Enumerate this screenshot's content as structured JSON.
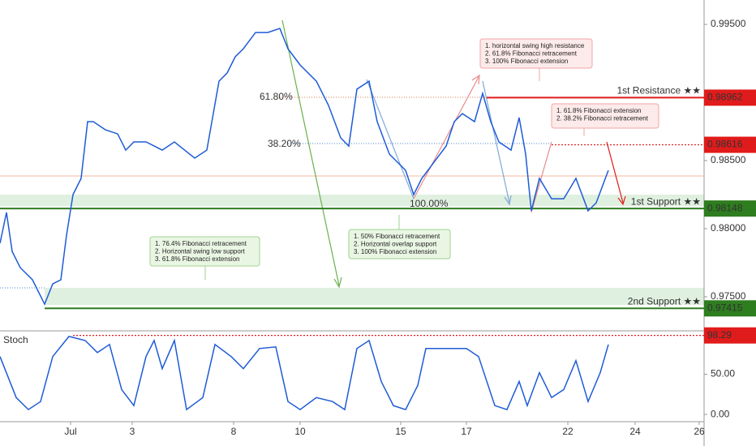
{
  "chart_data": [
    {
      "type": "line",
      "x": [
        0,
        1.6,
        3,
        5,
        8,
        11,
        13,
        15,
        16.4,
        18,
        20,
        21.6,
        23,
        26,
        29,
        31,
        33,
        36,
        40,
        43,
        48,
        51,
        54,
        56,
        58,
        60,
        63,
        66,
        69,
        71,
        74,
        78,
        81,
        84,
        86,
        88,
        91,
        93,
        96,
        100,
        102,
        104,
        107,
        110,
        112,
        114,
        117,
        119,
        121,
        123,
        126,
        128,
        129.6,
        131,
        133,
        136,
        139,
        142,
        145,
        147,
        150
      ],
      "series": [
        {
          "color": "#1e5bd6",
          "values": [
            0.97893,
            0.98119,
            0.97833,
            0.97714,
            0.97625,
            0.97446,
            0.97595,
            0.97625,
            0.97952,
            0.9825,
            0.98369,
            0.98786,
            0.98786,
            0.98726,
            0.98696,
            0.98577,
            0.98637,
            0.98637,
            0.98577,
            0.98637,
            0.98518,
            0.98577,
            0.99083,
            0.99143,
            0.99262,
            0.99321,
            0.9944,
            0.9944,
            0.9947,
            0.99321,
            0.99202,
            0.99083,
            0.98905,
            0.98667,
            0.98607,
            0.99024,
            0.99083,
            0.98786,
            0.98548,
            0.98429,
            0.9825,
            0.98369,
            0.98488,
            0.98607,
            0.98786,
            0.98845,
            0.98786,
            0.98994,
            0.98786,
            0.98637,
            0.98577,
            0.98815,
            0.98548,
            0.98131,
            0.98369,
            0.9822,
            0.9822,
            0.98369,
            0.98131,
            0.9819,
            0.98429
          ]
        }
      ],
      "xlim": [
        0,
        173.6
      ],
      "xticks": [
        {
          "value": 17.4,
          "label": "Jul"
        },
        {
          "value": 32.6,
          "label": "3"
        },
        {
          "value": 57.6,
          "label": "8"
        },
        {
          "value": 74,
          "label": "10"
        },
        {
          "value": 98.8,
          "label": "15"
        },
        {
          "value": 115,
          "label": "17"
        },
        {
          "value": 140,
          "label": "22"
        },
        {
          "value": 156.6,
          "label": "24"
        },
        {
          "value": 172.4,
          "label": "26"
        }
      ],
      "ylim": [
        0.9725,
        0.99679
      ],
      "yticks": [
        {
          "value": 0.995,
          "label": "0.99500"
        },
        {
          "value": 0.985,
          "label": "0.98500"
        },
        {
          "value": 0.98,
          "label": "0.98000"
        },
        {
          "value": 0.975,
          "label": "0.97500"
        }
      ],
      "levels": [
        {
          "name": "1st Resistance ★★",
          "value": 0.98962,
          "color": "#e01b1b"
        },
        {
          "value": 0.98616,
          "color": "#e01b1b"
        },
        {
          "name": "1st Support ★★",
          "value": 0.98148,
          "color": "#2e7d1f"
        },
        {
          "name": "2nd Support ★★",
          "value": 0.97415,
          "color": "#2e7d1f"
        }
      ],
      "fib_labels": [
        "61.80%",
        "38.20%",
        "100.00%"
      ],
      "annotations": [
        {
          "color": "red",
          "lines": [
            "1. horizontal swing high resistance",
            "2. 61.8% Fibonacci retracement",
            "3. 100% Fibonacci extension"
          ]
        },
        {
          "color": "red",
          "lines": [
            "1. 61.8% Fibonacci extension",
            "2. 38.2% Fibonacci retracement"
          ]
        },
        {
          "color": "green",
          "lines": [
            "1. 50% Fibonacci retracement",
            "2. Horizontal overlap support",
            "3. 100% Fibonacci extension"
          ]
        },
        {
          "color": "green",
          "lines": [
            "1. 76.4% Fibonacci retracement",
            "2. Horizontal swing low support",
            "3. 61.8% Fibonacci extension"
          ]
        }
      ]
    },
    {
      "type": "line",
      "title": "Stoch",
      "x": [
        0,
        4,
        7,
        10,
        13,
        17,
        21,
        24,
        27,
        30,
        33,
        36,
        38,
        40,
        43,
        46,
        50,
        53,
        57,
        60,
        64,
        68,
        71,
        74,
        78,
        82,
        85,
        88,
        91,
        94,
        97,
        100,
        103,
        105,
        108,
        111,
        115,
        118,
        122,
        125,
        128,
        130,
        133,
        136,
        139,
        142,
        145,
        148,
        150
      ],
      "series": [
        {
          "color": "#1e5bd6",
          "values": [
            72,
            21,
            6,
            16,
            72,
            97,
            92,
            77,
            87,
            31,
            11,
            72,
            92,
            57,
            92,
            6,
            21,
            87,
            72,
            57,
            82,
            84,
            16,
            6,
            21,
            16,
            6,
            82,
            92,
            41,
            11,
            6,
            36,
            82,
            82,
            82,
            82,
            72,
            11,
            6,
            41,
            11,
            52,
            21,
            31,
            67,
            16,
            52,
            87
          ]
        }
      ],
      "ylim": [
        -9,
        104
      ],
      "yticks": [
        {
          "value": 50,
          "label": "50.00"
        },
        {
          "value": 0,
          "label": "0.00"
        }
      ],
      "levels": [
        {
          "value": 98.29,
          "color": "#e01b1b"
        }
      ]
    }
  ]
}
